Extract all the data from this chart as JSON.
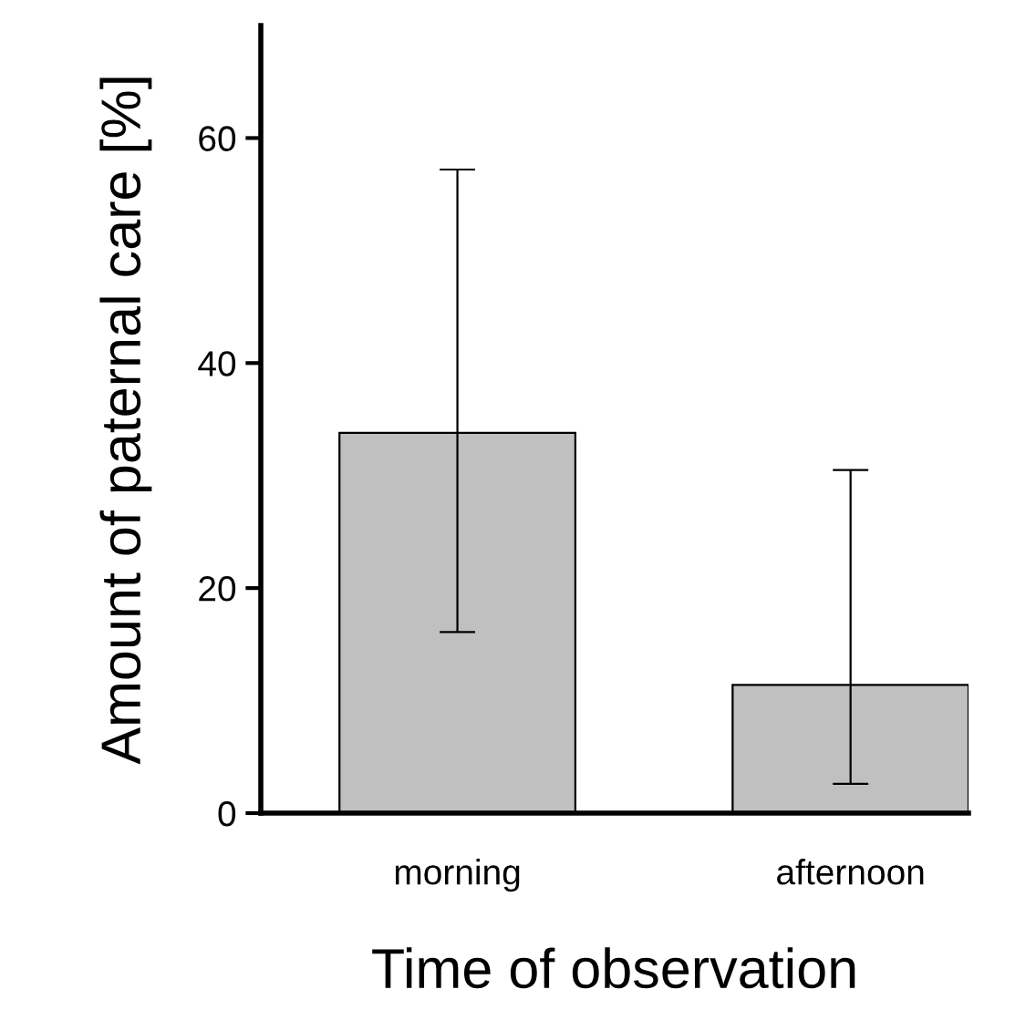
{
  "chart_data": {
    "type": "bar",
    "xlabel": "Time of observation",
    "ylabel": "Amount of paternal care [%]",
    "categories": [
      "morning",
      "afternoon"
    ],
    "values": [
      33.8,
      11.4
    ],
    "errors": [
      [
        16.1,
        57.2
      ],
      [
        2.6,
        30.5
      ]
    ],
    "color": "#c0c0c0",
    "ylim": [
      0,
      70
    ],
    "yticks": [
      0,
      20,
      40,
      60
    ],
    "grid": false
  }
}
